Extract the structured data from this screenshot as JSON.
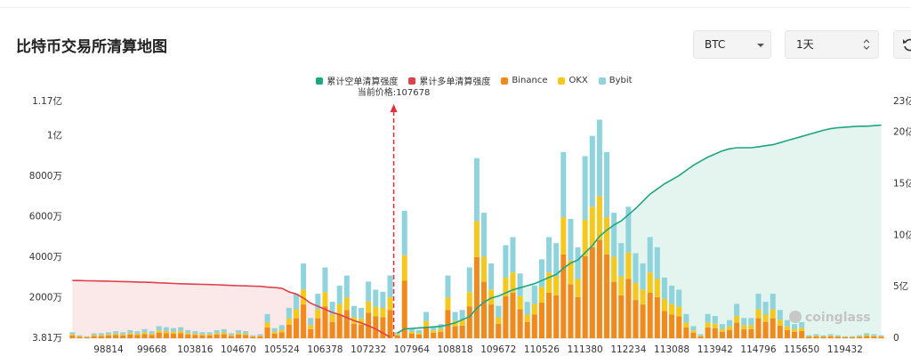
{
  "controls": {
    "coin": "BTC",
    "period": "1天"
  },
  "chart_data": {
    "type": "bar",
    "stacked": true,
    "title": "比特币交易所清算地图",
    "annotation": "当前价格:107678",
    "watermark": "coinglass",
    "categories": [
      null,
      null,
      null,
      null,
      null,
      "98814",
      null,
      null,
      null,
      null,
      null,
      "99668",
      null,
      null,
      null,
      null,
      null,
      "103816",
      null,
      null,
      null,
      null,
      null,
      "104670",
      null,
      null,
      null,
      null,
      null,
      "105524",
      null,
      null,
      null,
      null,
      null,
      "106378",
      null,
      null,
      null,
      null,
      null,
      "107232",
      null,
      null,
      null,
      null,
      null,
      "107964",
      null,
      null,
      null,
      null,
      null,
      "108818",
      null,
      null,
      null,
      null,
      null,
      "109672",
      null,
      null,
      null,
      null,
      null,
      "110526",
      null,
      null,
      null,
      null,
      null,
      "111380",
      null,
      null,
      null,
      null,
      null,
      "112234",
      null,
      null,
      null,
      null,
      null,
      "113088",
      null,
      null,
      null,
      null,
      null,
      "113942",
      null,
      null,
      null,
      null,
      null,
      "114796",
      null,
      null,
      null,
      null,
      null,
      "115650",
      null,
      null,
      null,
      null,
      null,
      "119432",
      null,
      null,
      null,
      null,
      null
    ],
    "series": [
      {
        "name": "累计空单清算强度",
        "color": "#1fa67e",
        "type": "line",
        "axis": "y2",
        "values": [
          null,
          null,
          null,
          null,
          null,
          null,
          null,
          null,
          null,
          null,
          null,
          null,
          null,
          null,
          null,
          null,
          null,
          null,
          null,
          null,
          null,
          null,
          null,
          null,
          null,
          null,
          null,
          null,
          null,
          null,
          null,
          null,
          null,
          null,
          null,
          null,
          null,
          null,
          null,
          null,
          null,
          null,
          null,
          null,
          null,
          0.5,
          0.9,
          0.95,
          1.0,
          1.05,
          1.1,
          1.15,
          1.3,
          1.5,
          1.8,
          2.1,
          2.9,
          3.5,
          3.9,
          4.1,
          4.4,
          4.7,
          4.9,
          5.1,
          5.3,
          5.6,
          5.9,
          6.2,
          6.8,
          7.3,
          7.6,
          8.3,
          9.0,
          9.9,
          10.5,
          11.0,
          11.4,
          12.0,
          12.6,
          13.3,
          14.0,
          14.5,
          15.0,
          15.4,
          15.8,
          16.3,
          16.8,
          17.2,
          17.6,
          17.9,
          18.2,
          18.4,
          18.5,
          18.5,
          18.5,
          18.6,
          18.7,
          18.8,
          19.0,
          19.2,
          19.4,
          19.6,
          19.8,
          20.0,
          20.2,
          20.35,
          20.45,
          20.5,
          20.55,
          20.6,
          20.6,
          20.65,
          20.7
        ]
      },
      {
        "name": "累计多单清算强度",
        "color": "#e0404a",
        "type": "line",
        "axis": "y2",
        "values": [
          5.6,
          5.6,
          5.58,
          5.57,
          5.55,
          5.54,
          5.52,
          5.5,
          5.48,
          5.46,
          5.44,
          5.42,
          5.38,
          5.35,
          5.32,
          5.29,
          5.27,
          5.25,
          5.23,
          5.21,
          5.19,
          5.16,
          5.13,
          5.1,
          5.08,
          5.06,
          5.04,
          4.96,
          4.92,
          4.85,
          4.5,
          4.3,
          3.9,
          3.4,
          3.1,
          2.8,
          2.5,
          2.3,
          2.0,
          1.7,
          1.5,
          1.2,
          0.9,
          0.5,
          0.1,
          null,
          null,
          null,
          null,
          null,
          null,
          null,
          null,
          null,
          null,
          null,
          null,
          null,
          null,
          null,
          null,
          null,
          null,
          null,
          null,
          null,
          null,
          null,
          null,
          null,
          null,
          null,
          null,
          null,
          null,
          null,
          null,
          null,
          null,
          null,
          null,
          null,
          null,
          null,
          null,
          null,
          null,
          null,
          null,
          null,
          null,
          null,
          null,
          null,
          null,
          null,
          null,
          null,
          null,
          null,
          null,
          null,
          null,
          null,
          null,
          null,
          null,
          null,
          null,
          null,
          null,
          null,
          null
        ]
      },
      {
        "name": "Binance",
        "color": "#f08a1c",
        "values": [
          140,
          70,
          50,
          110,
          110,
          140,
          160,
          140,
          180,
          160,
          200,
          160,
          270,
          250,
          230,
          250,
          180,
          160,
          140,
          140,
          180,
          200,
          110,
          180,
          160,
          70,
          90,
          540,
          230,
          290,
          680,
          990,
          1670,
          450,
          990,
          1580,
          810,
          1170,
          1400,
          720,
          680,
          1260,
          1080,
          1040,
          1400,
          140,
          2840,
          230,
          180,
          590,
          270,
          320,
          1400,
          590,
          630,
          1580,
          4010,
          2790,
          1670,
          720,
          2070,
          2250,
          1440,
          810,
          1170,
          1760,
          2250,
          2120,
          4140,
          2660,
          2030,
          4050,
          4500,
          4860,
          4140,
          2790,
          2120,
          2930,
          1890,
          1670,
          2250,
          2030,
          1350,
          1170,
          1080,
          540,
          270,
          90,
          540,
          500,
          320,
          410,
          770,
          450,
          450,
          990,
          810,
          990,
          630,
          410,
          320,
          360,
          70,
          90,
          70,
          90,
          70,
          50,
          50,
          70,
          110,
          90,
          70
        ]
      },
      {
        "name": "OKX",
        "color": "#f5c81e",
        "values": [
          60,
          30,
          20,
          50,
          50,
          60,
          70,
          60,
          80,
          70,
          90,
          70,
          120,
          110,
          100,
          110,
          80,
          70,
          60,
          60,
          80,
          90,
          50,
          80,
          70,
          30,
          40,
          240,
          100,
          130,
          300,
          440,
          740,
          200,
          440,
          700,
          360,
          520,
          620,
          320,
          300,
          560,
          480,
          460,
          620,
          60,
          1260,
          100,
          80,
          260,
          120,
          140,
          620,
          260,
          280,
          700,
          1780,
          1240,
          740,
          320,
          920,
          1000,
          640,
          360,
          520,
          780,
          1000,
          940,
          1840,
          1180,
          900,
          1800,
          2000,
          2160,
          1840,
          1240,
          940,
          1300,
          840,
          740,
          1000,
          900,
          600,
          520,
          480,
          240,
          120,
          40,
          240,
          220,
          140,
          180,
          340,
          200,
          200,
          440,
          360,
          440,
          280,
          180,
          140,
          160,
          30,
          40,
          30,
          40,
          30,
          20,
          20,
          30,
          50,
          40,
          30
        ]
      },
      {
        "name": "Bybit",
        "color": "#8fd3dc",
        "values": [
          100,
          50,
          30,
          90,
          90,
          100,
          120,
          100,
          140,
          120,
          160,
          120,
          210,
          190,
          170,
          190,
          140,
          120,
          100,
          100,
          140,
          160,
          90,
          140,
          120,
          50,
          70,
          420,
          170,
          230,
          520,
          770,
          1290,
          350,
          770,
          1220,
          630,
          910,
          1080,
          560,
          520,
          980,
          840,
          800,
          1080,
          100,
          2200,
          170,
          140,
          450,
          210,
          240,
          1080,
          450,
          490,
          1220,
          3110,
          2170,
          1290,
          560,
          1610,
          1750,
          1120,
          630,
          910,
          1360,
          1750,
          1640,
          3220,
          2060,
          1570,
          3150,
          3500,
          3780,
          3220,
          2170,
          1640,
          2270,
          1470,
          1290,
          1750,
          1570,
          1050,
          910,
          840,
          420,
          210,
          70,
          420,
          380,
          240,
          310,
          590,
          350,
          350,
          770,
          630,
          770,
          490,
          310,
          240,
          280,
          50,
          70,
          50,
          70,
          50,
          30,
          30,
          50,
          90,
          70,
          50
        ]
      }
    ],
    "ylim": [
      3.81,
      11700
    ],
    "yticks": [
      {
        "value": 3.81,
        "label": "3.81万"
      },
      {
        "value": 2000,
        "label": "2000万"
      },
      {
        "value": 4000,
        "label": "4000万"
      },
      {
        "value": 6000,
        "label": "6000万"
      },
      {
        "value": 8000,
        "label": "8000万"
      },
      {
        "value": 10000,
        "label": "1亿"
      },
      {
        "value": 11700,
        "label": "1.17亿"
      }
    ],
    "y2lim": [
      0,
      23
    ],
    "y2ticks": [
      0,
      {
        "value": 5,
        "label": "5亿"
      },
      {
        "value": 10,
        "label": "10亿"
      },
      {
        "value": 15,
        "label": "15亿"
      },
      {
        "value": 20,
        "label": "20亿"
      },
      {
        "value": 23,
        "label": "23亿"
      }
    ],
    "grid": false
  }
}
